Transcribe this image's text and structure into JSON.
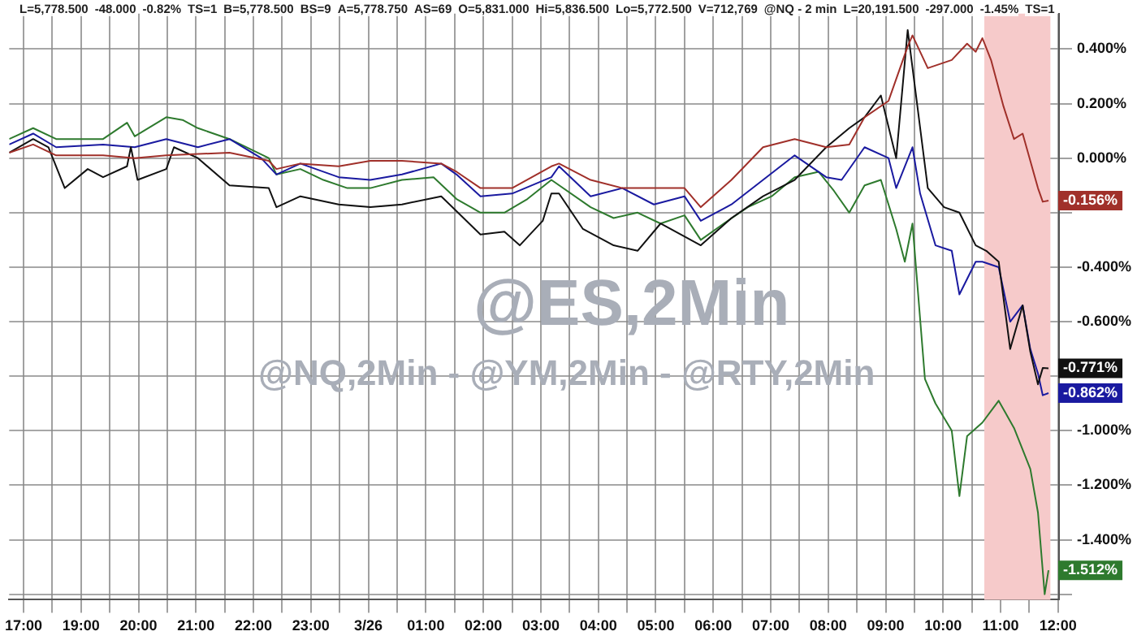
{
  "chart_data": {
    "type": "line",
    "title": "@ES,2Min",
    "subtitle": "@NQ,2Min - @YM,2Min - @RTY,2Min",
    "annotations": [
      "L=5,778.500",
      "-48.000",
      "-0.82%",
      "TS=1",
      "B=5,778.500",
      "BS=9",
      "A=5,778.750",
      "AS=69",
      "O=5,831.000",
      "Hi=5,836.500",
      "Lo=5,772.500",
      "V=712,769",
      "@NQ - 2 min",
      "L=20,191.500",
      "-297.000",
      "-1.45%",
      "TS=1",
      {
        "text": "-0.156%",
        "x": "--03-26T11:50",
        "y": -0.156
      },
      {
        "text": "-0.771%",
        "x": "--03-26T11:50",
        "y": -0.771
      },
      {
        "text": "-0.862%",
        "x": "--03-26T11:50",
        "y": -0.862
      },
      {
        "text": "-1.512%",
        "x": "--03-26T11:50",
        "y": -1.512
      }
    ],
    "xlim": [
      "--03-25T17:45",
      "--03-26T12:01"
    ],
    "ylim": [
      -1.62,
      0.53
    ],
    "xticks": [
      {
        "value": "--03-25T18:00",
        "label": "17:00"
      },
      {
        "value": "--03-25T18:30",
        "label": null
      },
      {
        "value": "--03-25T19:00",
        "label": "19:00"
      },
      {
        "value": "--03-25T19:30",
        "label": null
      },
      {
        "value": "--03-25T20:00",
        "label": "20:00"
      },
      {
        "value": "--03-25T20:30",
        "label": null
      },
      {
        "value": "--03-25T21:00",
        "label": "21:00"
      },
      {
        "value": "--03-25T21:30",
        "label": null
      },
      {
        "value": "--03-25T22:00",
        "label": "22:00"
      },
      {
        "value": "--03-25T22:30",
        "label": null
      },
      {
        "value": "--03-25T23:00",
        "label": "23:00"
      },
      {
        "value": "--03-25T23:30",
        "label": null
      },
      {
        "value": "--03-26T00:00",
        "label": "3/26"
      },
      {
        "value": "--03-26T00:30",
        "label": null
      },
      {
        "value": "--03-26T01:00",
        "label": "01:00"
      },
      {
        "value": "--03-26T01:30",
        "label": null
      },
      {
        "value": "--03-26T02:00",
        "label": "02:00"
      },
      {
        "value": "--03-26T02:30",
        "label": null
      },
      {
        "value": "--03-26T03:00",
        "label": "03:00"
      },
      {
        "value": "--03-26T03:30",
        "label": null
      },
      {
        "value": "--03-26T04:00",
        "label": "04:00"
      },
      {
        "value": "--03-26T04:30",
        "label": null
      },
      {
        "value": "--03-26T05:00",
        "label": "05:00"
      },
      {
        "value": "--03-26T05:30",
        "label": null
      },
      {
        "value": "--03-26T06:00",
        "label": "06:00"
      },
      {
        "value": "--03-26T06:30",
        "label": null
      },
      {
        "value": "--03-26T07:00",
        "label": "07:00"
      },
      {
        "value": "--03-26T07:30",
        "label": null
      },
      {
        "value": "--03-26T08:00",
        "label": "08:00"
      },
      {
        "value": "--03-26T08:30",
        "label": null
      },
      {
        "value": "--03-26T09:00",
        "label": "09:00"
      },
      {
        "value": "--03-26T09:30",
        "label": null
      },
      {
        "value": "--03-26T10:00",
        "label": "10:00"
      },
      {
        "value": "--03-26T10:30",
        "label": null
      },
      {
        "value": "--03-26T11:00",
        "label": "11:00"
      },
      {
        "value": "--03-26T11:30",
        "label": null
      },
      {
        "value": "--03-26T12:00",
        "label": "12:00"
      }
    ],
    "yticks": [
      {
        "value": -1.6,
        "label": null
      },
      {
        "value": -1.4,
        "label": "-1.400%"
      },
      {
        "value": -1.2,
        "label": "-1.200%"
      },
      {
        "value": -1.0,
        "label": "-1.000%"
      },
      {
        "value": -0.8,
        "label": null
      },
      {
        "value": -0.6,
        "label": "-0.600%"
      },
      {
        "value": -0.4,
        "label": "-0.400%"
      },
      {
        "value": -0.2,
        "label": null
      },
      {
        "value": 0,
        "label": "0.000%"
      },
      {
        "value": 0.2,
        "label": "0.200%"
      },
      {
        "value": 0.4,
        "label": "0.400%"
      }
    ],
    "grid": true,
    "marker": "none",
    "line_style": "solid",
    "bands": [
      {
        "axis": "x",
        "from": "--03-26T10:43",
        "to": "--03-26T11:52",
        "color": "#f6caca"
      }
    ],
    "series": [
      {
        "color": "#a0302a",
        "x": [
          "--03-25T17:45",
          "--03-25T18:10",
          "--03-25T18:34",
          "--03-25T19:23",
          "--03-25T19:56",
          "--03-25T20:29",
          "--03-25T21:35",
          "--03-25T22:16",
          "--03-25T22:24",
          "--03-25T22:49",
          "--03-25T23:29",
          "--03-26T00:02",
          "--03-26T00:35",
          "--03-26T01:16",
          "--03-26T01:32",
          "--03-26T01:57",
          "--03-26T02:30",
          "--03-26T03:11",
          "--03-26T03:19",
          "--03-26T03:52",
          "--03-26T04:25",
          "--03-26T04:58",
          "--03-26T05:30",
          "--03-26T05:47",
          "--03-26T06:19",
          "--03-26T06:52",
          "--03-26T07:25",
          "--03-26T07:58",
          "--03-26T08:22",
          "--03-26T08:38",
          "--03-26T09:03",
          "--03-26T09:23",
          "--03-26T09:28",
          "--03-26T09:44",
          "--03-26T10:09",
          "--03-26T10:25",
          "--03-26T10:34",
          "--03-26T10:41",
          "--03-26T10:50",
          "--03-26T11:03",
          "--03-26T11:14",
          "--03-26T11:23",
          "--03-26T11:31",
          "--03-26T11:39",
          "--03-26T11:44",
          "--03-26T11:50"
        ],
        "values": [
          0.02,
          0.05,
          0.01,
          0.01,
          0.0,
          0.01,
          0.02,
          -0.01,
          -0.04,
          -0.02,
          -0.03,
          -0.01,
          -0.01,
          -0.02,
          -0.05,
          -0.11,
          -0.11,
          -0.03,
          -0.02,
          -0.08,
          -0.11,
          -0.11,
          -0.11,
          -0.18,
          -0.08,
          0.04,
          0.07,
          0.04,
          0.05,
          0.15,
          0.21,
          0.41,
          0.45,
          0.33,
          0.36,
          0.42,
          0.39,
          0.44,
          0.36,
          0.19,
          0.07,
          0.09,
          -0.01,
          -0.11,
          -0.16,
          -0.156
        ]
      },
      {
        "color": "#111111",
        "x": [
          "--03-25T17:45",
          "--03-25T18:10",
          "--03-25T18:26",
          "--03-25T18:43",
          "--03-25T19:07",
          "--03-25T19:23",
          "--03-25T19:48",
          "--03-25T19:52",
          "--03-25T19:59",
          "--03-25T20:29",
          "--03-25T20:37",
          "--03-25T21:02",
          "--03-25T21:35",
          "--03-25T22:16",
          "--03-25T22:24",
          "--03-25T22:49",
          "--03-25T23:29",
          "--03-26T00:02",
          "--03-26T00:35",
          "--03-26T01:16",
          "--03-26T01:57",
          "--03-26T02:22",
          "--03-26T02:38",
          "--03-26T03:02",
          "--03-26T03:11",
          "--03-26T03:19",
          "--03-26T03:44",
          "--03-26T04:16",
          "--03-26T04:41",
          "--03-26T05:05",
          "--03-26T05:47",
          "--03-26T06:19",
          "--03-26T06:52",
          "--03-26T07:25",
          "--03-26T07:58",
          "--03-26T08:22",
          "--03-26T08:38",
          "--03-26T08:55",
          "--03-26T09:11",
          "--03-26T09:23",
          "--03-26T09:44",
          "--03-26T10:01",
          "--03-26T10:17",
          "--03-26T10:34",
          "--03-26T10:45",
          "--03-26T10:58",
          "--03-26T11:10",
          "--03-26T11:23",
          "--03-26T11:31",
          "--03-26T11:39",
          "--03-26T11:44",
          "--03-26T11:50"
        ],
        "values": [
          0.02,
          0.07,
          0.04,
          -0.11,
          -0.04,
          -0.07,
          -0.03,
          0.04,
          -0.08,
          -0.04,
          0.04,
          0.0,
          -0.1,
          -0.11,
          -0.18,
          -0.14,
          -0.17,
          -0.18,
          -0.17,
          -0.14,
          -0.28,
          -0.27,
          -0.32,
          -0.23,
          -0.13,
          -0.13,
          -0.26,
          -0.32,
          -0.34,
          -0.24,
          -0.32,
          -0.22,
          -0.14,
          -0.08,
          0.04,
          0.11,
          0.15,
          0.23,
          0.0,
          0.47,
          -0.11,
          -0.18,
          -0.2,
          -0.32,
          -0.34,
          -0.38,
          -0.7,
          -0.54,
          -0.71,
          -0.83,
          -0.77,
          -0.771
        ]
      },
      {
        "color": "#1a1aa0",
        "x": [
          "--03-25T17:45",
          "--03-25T18:10",
          "--03-25T18:34",
          "--03-25T19:23",
          "--03-25T19:56",
          "--03-25T20:29",
          "--03-25T21:02",
          "--03-25T21:35",
          "--03-25T22:08",
          "--03-25T22:24",
          "--03-25T22:49",
          "--03-25T23:29",
          "--03-26T00:02",
          "--03-26T00:35",
          "--03-26T01:16",
          "--03-26T01:32",
          "--03-26T01:57",
          "--03-26T02:30",
          "--03-26T03:11",
          "--03-26T03:19",
          "--03-26T03:52",
          "--03-26T04:25",
          "--03-26T04:58",
          "--03-26T05:30",
          "--03-26T05:47",
          "--03-26T06:19",
          "--03-26T06:52",
          "--03-26T07:25",
          "--03-26T07:58",
          "--03-26T08:14",
          "--03-26T08:38",
          "--03-26T09:03",
          "--03-26T09:11",
          "--03-26T09:28",
          "--03-26T09:36",
          "--03-26T09:52",
          "--03-26T10:09",
          "--03-26T10:17",
          "--03-26T10:34",
          "--03-26T10:41",
          "--03-26T10:58",
          "--03-26T11:10",
          "--03-26T11:23",
          "--03-26T11:31",
          "--03-26T11:39",
          "--03-26T11:44",
          "--03-26T11:50"
        ],
        "values": [
          0.05,
          0.09,
          0.04,
          0.05,
          0.04,
          0.07,
          0.04,
          0.07,
          0.0,
          -0.06,
          -0.02,
          -0.07,
          -0.08,
          -0.06,
          -0.02,
          -0.06,
          -0.14,
          -0.13,
          -0.07,
          -0.03,
          -0.14,
          -0.11,
          -0.17,
          -0.14,
          -0.23,
          -0.17,
          -0.08,
          0.01,
          -0.07,
          -0.08,
          0.04,
          0.0,
          -0.11,
          0.04,
          -0.13,
          -0.32,
          -0.34,
          -0.5,
          -0.38,
          -0.38,
          -0.4,
          -0.6,
          -0.54,
          -0.7,
          -0.79,
          -0.87,
          -0.862
        ]
      },
      {
        "color": "#2e7a2e",
        "x": [
          "--03-25T17:45",
          "--03-25T18:10",
          "--03-25T18:34",
          "--03-25T18:59",
          "--03-25T19:23",
          "--03-25T19:48",
          "--03-25T19:56",
          "--03-25T20:29",
          "--03-25T20:46",
          "--03-25T21:02",
          "--03-25T21:35",
          "--03-25T22:16",
          "--03-25T22:24",
          "--03-25T22:49",
          "--03-25T23:13",
          "--03-25T23:38",
          "--03-26T00:02",
          "--03-26T00:35",
          "--03-26T01:08",
          "--03-26T01:32",
          "--03-26T01:57",
          "--03-26T02:22",
          "--03-26T02:46",
          "--03-26T03:11",
          "--03-26T03:52",
          "--03-26T04:16",
          "--03-26T04:41",
          "--03-26T05:05",
          "--03-26T05:30",
          "--03-26T05:47",
          "--03-26T06:11",
          "--03-26T06:36",
          "--03-26T07:01",
          "--03-26T07:25",
          "--03-26T07:50",
          "--03-26T08:06",
          "--03-26T08:22",
          "--03-26T08:38",
          "--03-26T08:55",
          "--03-26T09:11",
          "--03-26T09:20",
          "--03-26T09:28",
          "--03-26T09:41",
          "--03-26T09:52",
          "--03-26T10:09",
          "--03-26T10:17",
          "--03-26T10:25",
          "--03-26T10:41",
          "--03-26T10:58",
          "--03-26T11:14",
          "--03-26T11:31",
          "--03-26T11:39",
          "--03-26T11:46",
          "--03-26T11:50"
        ],
        "values": [
          0.07,
          0.11,
          0.07,
          0.07,
          0.07,
          0.13,
          0.08,
          0.15,
          0.14,
          0.11,
          0.07,
          0.0,
          -0.06,
          -0.04,
          -0.08,
          -0.11,
          -0.11,
          -0.08,
          -0.07,
          -0.15,
          -0.2,
          -0.2,
          -0.15,
          -0.08,
          -0.18,
          -0.22,
          -0.2,
          -0.24,
          -0.21,
          -0.3,
          -0.24,
          -0.18,
          -0.14,
          -0.07,
          -0.05,
          -0.12,
          -0.2,
          -0.1,
          -0.08,
          -0.26,
          -0.38,
          -0.24,
          -0.81,
          -0.9,
          -1.0,
          -1.24,
          -1.02,
          -0.97,
          -0.89,
          -0.99,
          -1.14,
          -1.3,
          -1.6,
          -1.512
        ]
      }
    ]
  }
}
